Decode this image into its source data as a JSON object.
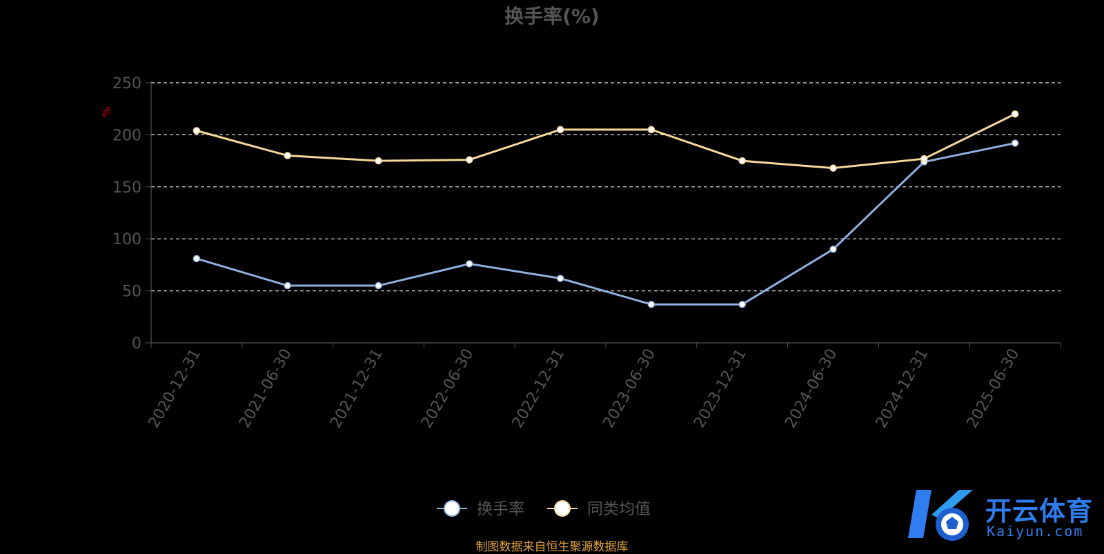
{
  "chart_data": {
    "type": "line",
    "title": "换手率(%)",
    "ylabel": "%",
    "ylim": [
      0,
      250
    ],
    "yticks": [
      "0",
      "50",
      "100",
      "150",
      "200",
      "250"
    ],
    "categories": [
      "2020-12-31",
      "2021-06-30",
      "2021-12-31",
      "2022-06-30",
      "2022-12-31",
      "2023-06-30",
      "2023-12-31",
      "2024-06-30",
      "2024-12-31",
      "2025-06-30"
    ],
    "series": [
      {
        "name": "换手率",
        "color": "#8fb0e0",
        "values": [
          81,
          55,
          55,
          76,
          62,
          37,
          37,
          90,
          174,
          192
        ]
      },
      {
        "name": "同类均值",
        "color": "#f7d79b",
        "values": [
          204,
          180,
          175,
          176,
          205,
          205,
          175,
          168,
          177,
          220
        ]
      }
    ],
    "grid": "horizontal-dashed",
    "legend_position": "bottom"
  },
  "source_text": "制图数据来自恒生聚源数据库",
  "watermark": {
    "cn": "开云体育",
    "en": "Kaiyun.com"
  }
}
